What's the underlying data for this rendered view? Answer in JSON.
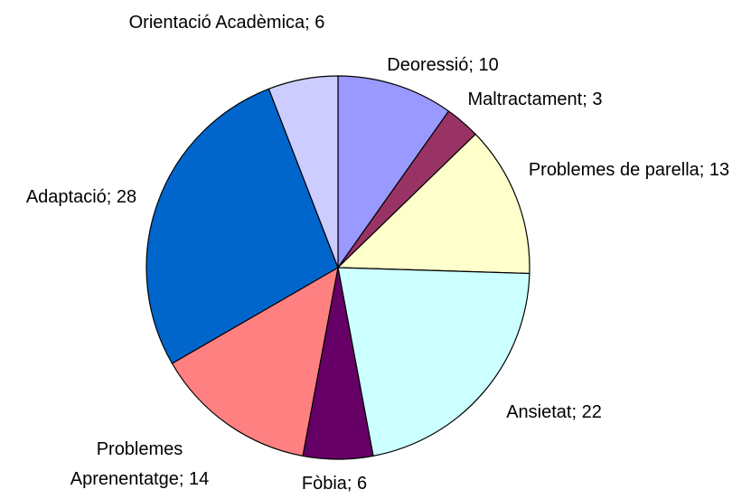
{
  "chart_data": {
    "type": "pie",
    "values": [
      10,
      3,
      13,
      22,
      6,
      14,
      28,
      6
    ],
    "value_labels": [
      "Deoressió; 10",
      "Maltractament; 3",
      "Problemes de parella; 13",
      "Ansietat; 22",
      "Fòbia; 6",
      "Problemes Aprenentatge; 14",
      "Adaptació; 28",
      "Orientació Acadèmica; 6"
    ],
    "colors": [
      "#9999ff",
      "#993366",
      "#ffffcc",
      "#ccffff",
      "#660066",
      "#ff8080",
      "#0066cc",
      "#ccccff"
    ]
  }
}
